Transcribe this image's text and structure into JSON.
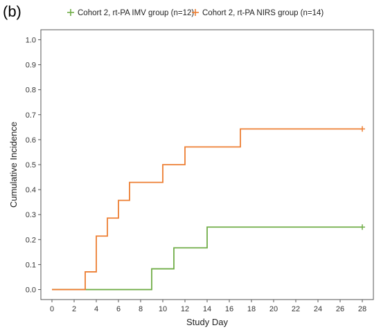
{
  "panel_label": "(b)",
  "chart_data": {
    "type": "line",
    "step": true,
    "xlabel": "Study Day",
    "ylabel": "Cumulative Incidence",
    "xlim": [
      -1,
      29
    ],
    "ylim": [
      -0.04,
      1.04
    ],
    "x_ticks": [
      0,
      2,
      4,
      6,
      8,
      10,
      12,
      14,
      16,
      18,
      20,
      22,
      24,
      26,
      28
    ],
    "y_ticks": [
      0.0,
      0.1,
      0.2,
      0.3,
      0.4,
      0.5,
      0.6,
      0.7,
      0.8,
      0.9,
      1.0
    ],
    "y_tick_labels": [
      "0.0",
      "0.1",
      "0.2",
      "0.3",
      "0.4",
      "0.5",
      "0.6",
      "0.7",
      "0.8",
      "0.9",
      "1.0"
    ],
    "grid": false,
    "legend_position": "top",
    "series": [
      {
        "name": "Cohort 2, rt-PA IMV group (n=12)",
        "color": "#70ad47",
        "x": [
          0,
          9,
          11,
          14,
          28
        ],
        "y": [
          0.0,
          0.083,
          0.167,
          0.25,
          0.25
        ],
        "censor_x": [
          28
        ]
      },
      {
        "name": "Cohort 2, rt-PA NIRS group (n=14)",
        "color": "#ed7d31",
        "x": [
          0,
          3,
          4,
          5,
          6,
          7,
          10,
          12,
          17,
          28
        ],
        "y": [
          0.0,
          0.071,
          0.214,
          0.286,
          0.357,
          0.429,
          0.5,
          0.571,
          0.643,
          0.643
        ],
        "censor_x": [
          28
        ]
      }
    ]
  }
}
